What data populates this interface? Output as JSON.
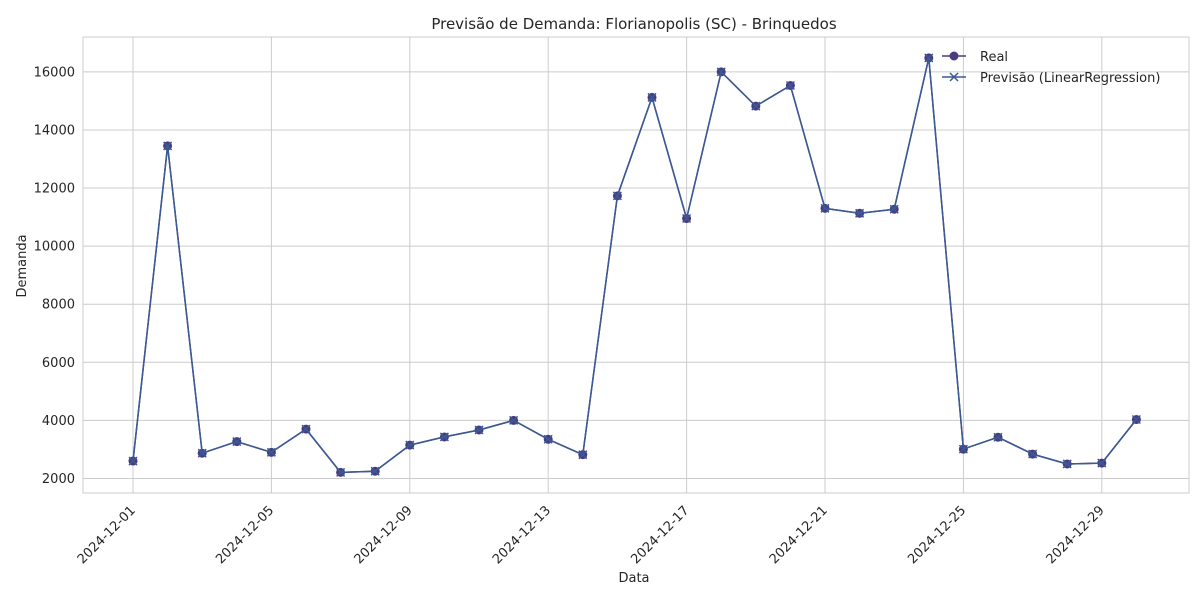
{
  "chart_data": {
    "type": "line",
    "title": "Previsão de Demanda: Florianopolis (SC) - Brinquedos",
    "xlabel": "Data",
    "ylabel": "Demanda",
    "x_start": "2024-12-01",
    "x": [
      "2024-12-01",
      "2024-12-02",
      "2024-12-03",
      "2024-12-04",
      "2024-12-05",
      "2024-12-06",
      "2024-12-07",
      "2024-12-08",
      "2024-12-09",
      "2024-12-10",
      "2024-12-11",
      "2024-12-12",
      "2024-12-13",
      "2024-12-14",
      "2024-12-15",
      "2024-12-16",
      "2024-12-17",
      "2024-12-18",
      "2024-12-19",
      "2024-12-20",
      "2024-12-21",
      "2024-12-22",
      "2024-12-23",
      "2024-12-24",
      "2024-12-25",
      "2024-12-26",
      "2024-12-27",
      "2024-12-28",
      "2024-12-29",
      "2024-12-30"
    ],
    "x_ticks": [
      "2024-12-01",
      "2024-12-05",
      "2024-12-09",
      "2024-12-13",
      "2024-12-17",
      "2024-12-21",
      "2024-12-25",
      "2024-12-29"
    ],
    "y_ticks": [
      2000,
      4000,
      6000,
      8000,
      10000,
      12000,
      14000,
      16000
    ],
    "ylim": [
      1500,
      17200
    ],
    "grid": true,
    "legend_position": "top-right",
    "series": [
      {
        "name": "Real",
        "marker": "circle",
        "color": "#4b3a7e",
        "values": [
          2600,
          13450,
          2870,
          3270,
          2900,
          3700,
          2210,
          2250,
          3150,
          3430,
          3670,
          4000,
          3350,
          2820,
          11730,
          15120,
          10950,
          16000,
          14820,
          15530,
          11300,
          11130,
          11270,
          16480,
          3010,
          3420,
          2840,
          2500,
          2530,
          4030
        ]
      },
      {
        "name": "Previsão (LinearRegression)",
        "marker": "x",
        "color": "#3a5a94",
        "values": [
          2600,
          13450,
          2870,
          3270,
          2900,
          3700,
          2210,
          2250,
          3150,
          3430,
          3670,
          4000,
          3350,
          2820,
          11730,
          15120,
          10950,
          16000,
          14820,
          15530,
          11300,
          11130,
          11270,
          16480,
          3010,
          3420,
          2840,
          2500,
          2530,
          4030
        ]
      }
    ]
  }
}
